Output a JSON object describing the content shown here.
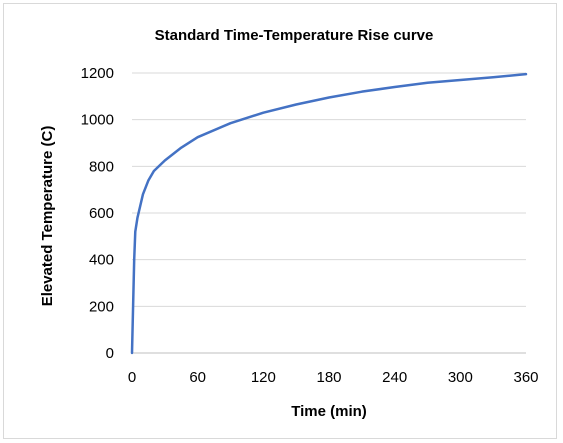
{
  "chart_data": {
    "type": "line",
    "title": "Standard Time-Temperature Rise curve",
    "xlabel": "Time (min)",
    "ylabel": "Elevated Temperature (C)",
    "xlim": [
      0,
      360
    ],
    "ylim": [
      0,
      1200
    ],
    "x_ticks": [
      "0",
      "60",
      "120",
      "180",
      "240",
      "300",
      "360"
    ],
    "y_ticks": [
      "0",
      "200",
      "400",
      "600",
      "800",
      "1000",
      "1200"
    ],
    "grid": "horizontal",
    "legend": "none",
    "series": [
      {
        "color": "#4472c4",
        "x": [
          0,
          1,
          2,
          3,
          5,
          7.5,
          10,
          15,
          20,
          30,
          45,
          60,
          90,
          120,
          150,
          180,
          210,
          240,
          270,
          300,
          330,
          360
        ],
        "y": [
          0,
          200,
          400,
          520,
          580,
          630,
          680,
          740,
          780,
          825,
          880,
          925,
          985,
          1030,
          1065,
          1095,
          1120,
          1140,
          1158,
          1170,
          1182,
          1195
        ]
      }
    ]
  }
}
